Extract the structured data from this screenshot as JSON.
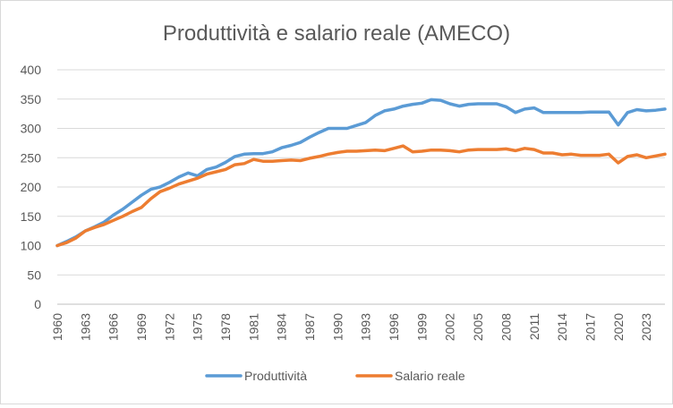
{
  "chart_data": {
    "type": "line",
    "title": "Produttività e salario reale (AMECO)",
    "xlabel": "",
    "ylabel": "",
    "ylim": [
      0,
      400
    ],
    "y_ticks": [
      0,
      50,
      100,
      150,
      200,
      250,
      300,
      350,
      400
    ],
    "x_ticks": [
      "1960",
      "1963",
      "1966",
      "1969",
      "1972",
      "1975",
      "1978",
      "1981",
      "1984",
      "1987",
      "1990",
      "1993",
      "1996",
      "1999",
      "2002",
      "2005",
      "2008",
      "2011",
      "2014",
      "2017",
      "2020",
      "2023"
    ],
    "grid": "horizontal",
    "legend_position": "bottom",
    "x": [
      1960,
      1961,
      1962,
      1963,
      1964,
      1965,
      1966,
      1967,
      1968,
      1969,
      1970,
      1971,
      1972,
      1973,
      1974,
      1975,
      1976,
      1977,
      1978,
      1979,
      1980,
      1981,
      1982,
      1983,
      1984,
      1985,
      1986,
      1987,
      1988,
      1989,
      1990,
      1991,
      1992,
      1993,
      1994,
      1995,
      1996,
      1997,
      1998,
      1999,
      2000,
      2001,
      2002,
      2003,
      2004,
      2005,
      2006,
      2007,
      2008,
      2009,
      2010,
      2011,
      2012,
      2013,
      2014,
      2015,
      2016,
      2017,
      2018,
      2019,
      2020,
      2021,
      2022,
      2023,
      2024,
      2025
    ],
    "series": [
      {
        "name": "Produttività",
        "color": "#5B9BD5",
        "values": [
          100,
          107,
          115,
          125,
          132,
          140,
          152,
          162,
          174,
          186,
          196,
          200,
          208,
          217,
          224,
          219,
          230,
          234,
          242,
          252,
          256,
          257,
          257,
          260,
          267,
          271,
          276,
          285,
          293,
          300,
          300,
          300,
          305,
          310,
          322,
          330,
          333,
          338,
          341,
          343,
          349,
          348,
          342,
          338,
          341,
          342,
          342,
          342,
          337,
          327,
          333,
          335,
          327,
          327,
          327,
          327,
          327,
          328,
          328,
          328,
          306,
          327,
          332,
          330,
          331,
          333
        ]
      },
      {
        "name": "Salario reale",
        "color": "#ED7D31",
        "values": [
          100,
          105,
          113,
          125,
          131,
          136,
          143,
          150,
          158,
          165,
          180,
          192,
          198,
          205,
          210,
          215,
          222,
          226,
          230,
          238,
          240,
          247,
          244,
          244,
          245,
          246,
          245,
          249,
          252,
          256,
          259,
          261,
          261,
          262,
          263,
          262,
          266,
          270,
          260,
          261,
          263,
          263,
          262,
          260,
          263,
          264,
          264,
          264,
          265,
          262,
          266,
          264,
          258,
          258,
          255,
          256,
          254,
          254,
          254,
          256,
          241,
          252,
          255,
          250,
          253,
          256
        ]
      }
    ]
  }
}
